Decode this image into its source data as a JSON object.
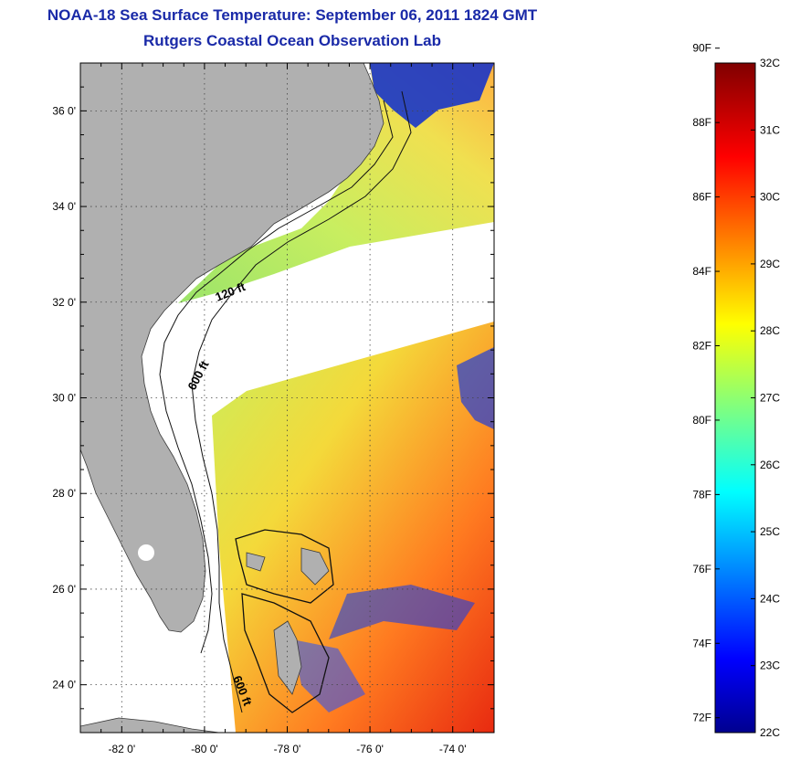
{
  "title": "NOAA-18 Sea Surface Temperature:  September 06, 2011 1824 GMT",
  "subtitle": "Rutgers Coastal Ocean Observation Lab",
  "map": {
    "lon_range": [
      -83,
      -73
    ],
    "lat_range": [
      23,
      37
    ],
    "lat_ticks": [
      {
        "value": 24,
        "label": "24 0'"
      },
      {
        "value": 26,
        "label": "26 0'"
      },
      {
        "value": 28,
        "label": "28 0'"
      },
      {
        "value": 30,
        "label": "30 0'"
      },
      {
        "value": 32,
        "label": "32 0'"
      },
      {
        "value": 34,
        "label": "34 0'"
      },
      {
        "value": 36,
        "label": "36 0'"
      }
    ],
    "lon_ticks": [
      {
        "value": -82,
        "label": "-82 0'"
      },
      {
        "value": -80,
        "label": "-80 0'"
      },
      {
        "value": -78,
        "label": "-78 0'"
      },
      {
        "value": -76,
        "label": "-76 0'"
      },
      {
        "value": -74,
        "label": "-74 0'"
      }
    ],
    "grid": "dotted",
    "land_color": "#b0b0b0",
    "contour_labels": [
      "120 ft",
      "600 ft",
      "600 ft"
    ]
  },
  "colorbar": {
    "min_c": 22,
    "max_c": 32,
    "f_labels": [
      "90F",
      "88F",
      "86F",
      "84F",
      "82F",
      "80F",
      "78F",
      "76F",
      "74F",
      "72F"
    ],
    "c_labels": [
      "32C",
      "31C",
      "30C",
      "29C",
      "28C",
      "27C",
      "26C",
      "25C",
      "24C",
      "23C",
      "22C"
    ],
    "colormap": "jet"
  }
}
